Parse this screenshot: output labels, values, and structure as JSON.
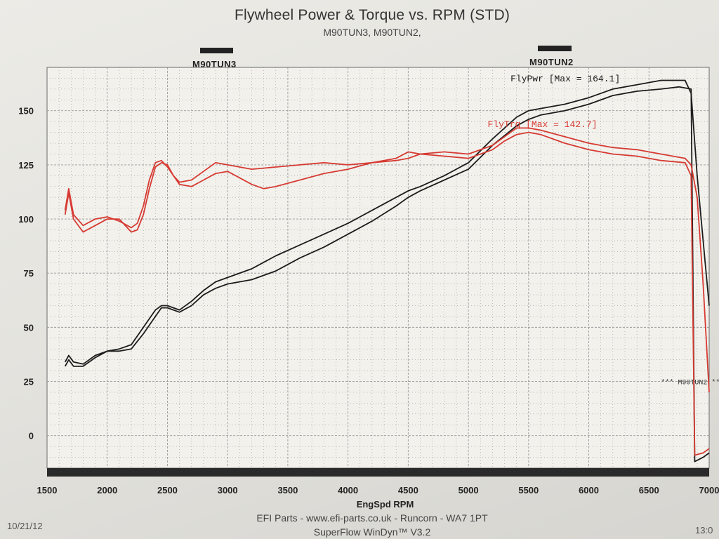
{
  "header": {
    "title": "Flywheel Power & Torque vs. RPM (STD)",
    "subtitle": "M90TUN3, M90TUN2,"
  },
  "runs": [
    {
      "label": "M90TUN3"
    },
    {
      "label": "M90TUN2"
    }
  ],
  "footer": {
    "line1": "EFI Parts - www.efi-parts.co.uk - Runcorn - WA7 1PT",
    "line2": "SuperFlow WinDyn™ V3.2",
    "date": "10/21/12",
    "time": "13:0"
  },
  "colors": {
    "power": "#1c1c1c",
    "torque": "#d63a32",
    "grid": "#9a9a9a"
  },
  "chart_data": {
    "type": "line",
    "xlabel": "EngSpd RPM",
    "ylabel": "",
    "xlim": [
      1500,
      7000
    ],
    "ylim": [
      -15,
      170
    ],
    "xticks": [
      1500,
      2000,
      2500,
      3000,
      3500,
      4000,
      4500,
      5000,
      5500,
      6000,
      6500,
      7000
    ],
    "yticks": [
      0,
      25,
      50,
      75,
      100,
      125,
      150
    ],
    "annotations": {
      "power_max": "FlyPwr [Max = 164.1]",
      "torque_max": "FlyTrq [Max = 142.7]",
      "run_end": "*** M90TUN2 **"
    },
    "series": [
      {
        "name": "FlyPwr",
        "run": "M90TUN3",
        "color": "#1c1c1c",
        "x": [
          1650,
          1680,
          1720,
          1800,
          1900,
          2000,
          2100,
          2200,
          2300,
          2400,
          2450,
          2500,
          2600,
          2700,
          2800,
          2900,
          3000,
          3200,
          3400,
          3600,
          3800,
          4000,
          4200,
          4400,
          4500,
          4600,
          4800,
          5000,
          5200,
          5400,
          5500,
          5600,
          5800,
          6000,
          6200,
          6400,
          6600,
          6800,
          6850,
          6900,
          6950,
          7000
        ],
        "y": [
          34,
          37,
          34,
          33,
          37,
          39,
          40,
          42,
          50,
          58,
          60,
          60,
          58,
          62,
          67,
          71,
          73,
          77,
          83,
          88,
          93,
          98,
          104,
          110,
          113,
          115,
          120,
          126,
          137,
          147,
          150,
          151,
          153,
          156,
          160,
          162,
          164,
          164,
          158,
          120,
          90,
          60
        ]
      },
      {
        "name": "FlyPwr",
        "run": "M90TUN2",
        "color": "#1c1c1c",
        "x": [
          1650,
          1680,
          1720,
          1800,
          1900,
          2000,
          2100,
          2200,
          2300,
          2400,
          2450,
          2500,
          2600,
          2700,
          2800,
          2900,
          3000,
          3200,
          3400,
          3600,
          3800,
          4000,
          4200,
          4400,
          4500,
          4600,
          4800,
          5000,
          5200,
          5400,
          5500,
          5600,
          5800,
          6000,
          6200,
          6400,
          6600,
          6750,
          6850,
          6880,
          6950,
          7000
        ],
        "y": [
          32,
          35,
          32,
          32,
          36,
          39,
          39,
          40,
          47,
          55,
          59,
          59,
          57,
          60,
          65,
          68,
          70,
          72,
          76,
          82,
          87,
          93,
          99,
          106,
          110,
          113,
          118,
          123,
          134,
          143,
          146,
          148,
          150,
          153,
          157,
          159,
          160,
          161,
          160,
          -12,
          -10,
          -8
        ]
      },
      {
        "name": "FlyTrq",
        "run": "M90TUN3",
        "color": "#d63a32",
        "x": [
          1650,
          1680,
          1720,
          1800,
          1900,
          2000,
          2100,
          2200,
          2250,
          2300,
          2350,
          2400,
          2450,
          2500,
          2550,
          2600,
          2700,
          2800,
          2900,
          3000,
          3200,
          3400,
          3600,
          3800,
          4000,
          4200,
          4400,
          4500,
          4600,
          4800,
          5000,
          5200,
          5300,
          5400,
          5500,
          5600,
          5800,
          6000,
          6200,
          6400,
          6600,
          6800,
          6850,
          6900,
          6950,
          7000
        ],
        "y": [
          104,
          114,
          102,
          97,
          100,
          101,
          99,
          96,
          98,
          106,
          118,
          126,
          127,
          124,
          120,
          117,
          118,
          122,
          126,
          125,
          123,
          124,
          125,
          126,
          125,
          126,
          128,
          131,
          130,
          131,
          130,
          134,
          138,
          142,
          142,
          141,
          138,
          135,
          133,
          132,
          130,
          128,
          125,
          110,
          70,
          20
        ]
      },
      {
        "name": "FlyTrq",
        "run": "M90TUN2",
        "color": "#d63a32",
        "x": [
          1650,
          1680,
          1720,
          1800,
          1900,
          2000,
          2100,
          2200,
          2250,
          2300,
          2350,
          2400,
          2450,
          2500,
          2550,
          2600,
          2700,
          2800,
          2900,
          3000,
          3200,
          3300,
          3400,
          3600,
          3800,
          4000,
          4200,
          4400,
          4500,
          4600,
          4800,
          5000,
          5200,
          5300,
          5400,
          5500,
          5600,
          5800,
          6000,
          6200,
          6400,
          6600,
          6800,
          6850,
          6880,
          6950,
          7000
        ],
        "y": [
          102,
          112,
          100,
          94,
          97,
          100,
          100,
          94,
          95,
          102,
          114,
          124,
          126,
          125,
          120,
          116,
          115,
          118,
          121,
          122,
          116,
          114,
          115,
          118,
          121,
          123,
          126,
          127,
          128,
          130,
          129,
          128,
          132,
          136,
          139,
          140,
          139,
          135,
          132,
          130,
          129,
          127,
          126,
          120,
          -9,
          -8,
          -6
        ]
      }
    ]
  }
}
